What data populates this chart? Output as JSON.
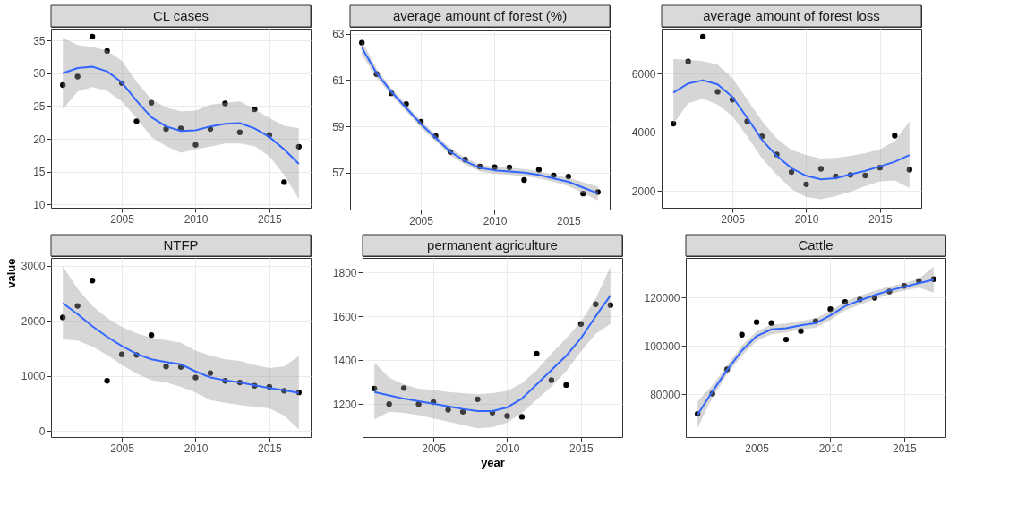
{
  "chart_data": [
    {
      "type": "scatter",
      "title": "CL cases",
      "x": [
        2001,
        2002,
        2003,
        2004,
        2005,
        2006,
        2007,
        2008,
        2009,
        2010,
        2011,
        2012,
        2013,
        2014,
        2015,
        2016,
        2017
      ],
      "xlim": [
        2000.2,
        2017.8
      ],
      "xticks": [
        2005,
        2010,
        2015
      ],
      "ylim": [
        9.5,
        36.8
      ],
      "yticks": [
        10,
        15,
        20,
        25,
        30,
        35
      ],
      "grid": true,
      "series": [
        {
          "type": "scatter",
          "marker": "circle",
          "color": "#000000",
          "values": [
            28.2,
            29.5,
            35.6,
            33.4,
            28.5,
            22.7,
            25.5,
            21.5,
            21.6,
            19.1,
            21.5,
            25.4,
            21.0,
            24.5,
            20.6,
            13.4,
            18.8
          ]
        },
        {
          "type": "line",
          "color": "#3366ff",
          "values": [
            30.0,
            30.8,
            31.0,
            30.3,
            28.6,
            25.8,
            23.3,
            21.9,
            21.2,
            21.3,
            21.9,
            22.3,
            22.4,
            21.6,
            20.3,
            18.4,
            16.2
          ],
          "lower": [
            24.5,
            27.2,
            27.9,
            27.3,
            25.7,
            23.2,
            20.3,
            18.9,
            17.9,
            18.4,
            18.8,
            19.3,
            19.3,
            18.9,
            17.4,
            14.5,
            10.8
          ],
          "upper": [
            35.4,
            34.3,
            34.0,
            33.5,
            31.9,
            28.7,
            26.0,
            24.8,
            24.2,
            24.3,
            25.2,
            25.5,
            25.7,
            24.5,
            23.2,
            22.0,
            21.6
          ]
        }
      ]
    },
    {
      "type": "scatter",
      "title": "average amount of forest (%)",
      "x": [
        2001,
        2002,
        2003,
        2004,
        2005,
        2006,
        2007,
        2008,
        2009,
        2010,
        2011,
        2012,
        2013,
        2014,
        2015,
        2016,
        2017
      ],
      "xlim": [
        2000.2,
        2017.8
      ],
      "xticks": [
        2005,
        2010,
        2015
      ],
      "ylim": [
        55.4,
        63.15
      ],
      "yticks": [
        57,
        59,
        61,
        63
      ],
      "grid": true,
      "series": [
        {
          "type": "scatter",
          "marker": "circle",
          "color": "#000000",
          "values": [
            62.62,
            61.26,
            60.43,
            59.97,
            59.2,
            58.58,
            57.89,
            57.56,
            57.26,
            57.23,
            57.22,
            56.68,
            57.12,
            56.88,
            56.83,
            56.09,
            56.16
          ]
        },
        {
          "type": "line",
          "color": "#3366ff",
          "values": [
            62.4,
            61.3,
            60.5,
            59.8,
            59.1,
            58.5,
            57.9,
            57.5,
            57.2,
            57.1,
            57.05,
            57.0,
            56.9,
            56.75,
            56.6,
            56.35,
            56.1
          ],
          "lower": [
            62.1,
            61.1,
            60.35,
            59.65,
            58.95,
            58.35,
            57.75,
            57.35,
            57.05,
            56.95,
            56.9,
            56.85,
            56.75,
            56.6,
            56.42,
            56.12,
            55.8
          ],
          "upper": [
            62.7,
            61.5,
            60.65,
            59.95,
            59.25,
            58.65,
            58.05,
            57.65,
            57.35,
            57.25,
            57.2,
            57.15,
            57.05,
            56.9,
            56.78,
            56.58,
            56.4
          ]
        }
      ]
    },
    {
      "type": "scatter",
      "title": "average amount of forest loss",
      "x": [
        2001,
        2002,
        2003,
        2004,
        2005,
        2006,
        2007,
        2008,
        2009,
        2010,
        2011,
        2012,
        2013,
        2014,
        2015,
        2016,
        2017
      ],
      "xlim": [
        2000.2,
        2017.8
      ],
      "xticks": [
        2005,
        2010,
        2015
      ],
      "ylim": [
        1430,
        7540
      ],
      "yticks": [
        2000,
        4000,
        6000
      ],
      "grid": true,
      "series": [
        {
          "type": "scatter",
          "marker": "circle",
          "color": "#000000",
          "values": [
            4300,
            6420,
            7270,
            5390,
            5120,
            4380,
            3870,
            3250,
            2650,
            2230,
            2760,
            2500,
            2550,
            2530,
            2800,
            3890,
            2730
          ]
        },
        {
          "type": "line",
          "color": "#3366ff",
          "values": [
            5360,
            5670,
            5780,
            5640,
            5210,
            4500,
            3750,
            3200,
            2780,
            2520,
            2400,
            2440,
            2570,
            2690,
            2840,
            3000,
            3230
          ],
          "lower": [
            4290,
            5000,
            5150,
            4950,
            4550,
            3870,
            3120,
            2560,
            2070,
            1800,
            1720,
            1830,
            1980,
            2160,
            2330,
            2360,
            2100
          ],
          "upper": [
            6500,
            6480,
            6430,
            6310,
            5850,
            5130,
            4390,
            3800,
            3400,
            3230,
            3110,
            3130,
            3200,
            3290,
            3420,
            3700,
            4380
          ]
        }
      ]
    },
    {
      "type": "scatter",
      "title": "NTFP",
      "ylabel": "value",
      "x": [
        2001,
        2002,
        2003,
        2004,
        2005,
        2006,
        2007,
        2008,
        2009,
        2010,
        2011,
        2012,
        2013,
        2014,
        2015,
        2016,
        2017
      ],
      "xlim": [
        2000.2,
        2017.8
      ],
      "xticks": [
        2005,
        2010,
        2015
      ],
      "ylim": [
        -110,
        3140
      ],
      "yticks": [
        0,
        1000,
        2000,
        3000
      ],
      "grid": true,
      "series": [
        {
          "type": "scatter",
          "marker": "circle",
          "color": "#000000",
          "values": [
            2060,
            2270,
            2730,
            910,
            1390,
            1380,
            1740,
            1170,
            1160,
            970,
            1050,
            910,
            880,
            820,
            800,
            730,
            700
          ]
        },
        {
          "type": "line",
          "color": "#3366ff",
          "values": [
            2320,
            2120,
            1900,
            1710,
            1540,
            1400,
            1300,
            1250,
            1210,
            1080,
            970,
            920,
            880,
            830,
            780,
            740,
            690
          ],
          "lower": [
            1660,
            1640,
            1530,
            1380,
            1200,
            1040,
            920,
            880,
            800,
            700,
            560,
            510,
            470,
            440,
            410,
            280,
            30
          ],
          "upper": [
            2990,
            2580,
            2270,
            2050,
            1890,
            1770,
            1690,
            1650,
            1600,
            1460,
            1370,
            1300,
            1270,
            1200,
            1140,
            1170,
            1360
          ]
        }
      ]
    },
    {
      "type": "scatter",
      "title": "permanent agriculture",
      "xlabel": "year",
      "x": [
        2001,
        2002,
        2003,
        2004,
        2005,
        2006,
        2007,
        2008,
        2009,
        2010,
        2011,
        2012,
        2013,
        2014,
        2015,
        2016,
        2017
      ],
      "xlim": [
        2000.2,
        2017.8
      ],
      "xticks": [
        2005,
        2010,
        2015
      ],
      "ylim": [
        1050,
        1866
      ],
      "yticks": [
        1200,
        1400,
        1600,
        1800
      ],
      "grid": true,
      "series": [
        {
          "type": "scatter",
          "marker": "circle",
          "color": "#000000",
          "values": [
            1271,
            1200,
            1273,
            1200,
            1209,
            1174,
            1165,
            1222,
            1161,
            1146,
            1142,
            1430,
            1309,
            1287,
            1565,
            1655,
            1651
          ]
        },
        {
          "type": "line",
          "color": "#3366ff",
          "values": [
            1255,
            1240,
            1225,
            1213,
            1202,
            1190,
            1178,
            1168,
            1168,
            1185,
            1225,
            1290,
            1355,
            1420,
            1500,
            1600,
            1695
          ],
          "lower": [
            1130,
            1165,
            1160,
            1150,
            1135,
            1120,
            1105,
            1090,
            1095,
            1115,
            1160,
            1220,
            1280,
            1350,
            1440,
            1520,
            1565
          ],
          "upper": [
            1390,
            1320,
            1290,
            1270,
            1265,
            1255,
            1250,
            1245,
            1250,
            1260,
            1295,
            1355,
            1430,
            1500,
            1575,
            1680,
            1825
          ]
        }
      ]
    },
    {
      "type": "scatter",
      "title": "Cattle",
      "x": [
        2001,
        2002,
        2003,
        2004,
        2005,
        2006,
        2007,
        2008,
        2009,
        2010,
        2011,
        2012,
        2013,
        2014,
        2015,
        2016,
        2017
      ],
      "xlim": [
        2000.2,
        2017.8
      ],
      "xticks": [
        2005,
        2010,
        2015
      ],
      "ylim": [
        62200,
        136400
      ],
      "yticks": [
        80000,
        100000,
        120000
      ],
      "grid": true,
      "series": [
        {
          "type": "scatter",
          "marker": "circle",
          "color": "#000000",
          "values": [
            71800,
            80200,
            90200,
            104600,
            109800,
            109400,
            102600,
            106100,
            110200,
            115200,
            118200,
            119200,
            119900,
            122500,
            124800,
            126900,
            127600
          ]
        },
        {
          "type": "line",
          "color": "#3366ff",
          "values": [
            71500,
            81000,
            90000,
            98000,
            104000,
            106800,
            107300,
            108500,
            109400,
            112600,
            116400,
            118800,
            121000,
            122900,
            124400,
            125900,
            127400
          ],
          "lower": [
            66000,
            78500,
            88000,
            96000,
            102000,
            104800,
            105500,
            106800,
            107500,
            110700,
            114600,
            117000,
            119300,
            121400,
            122900,
            124100,
            122000
          ],
          "upper": [
            77000,
            83500,
            92000,
            100000,
            106000,
            108800,
            109200,
            110300,
            111400,
            114500,
            118200,
            120700,
            122800,
            124500,
            125900,
            127800,
            132800
          ]
        }
      ]
    }
  ]
}
